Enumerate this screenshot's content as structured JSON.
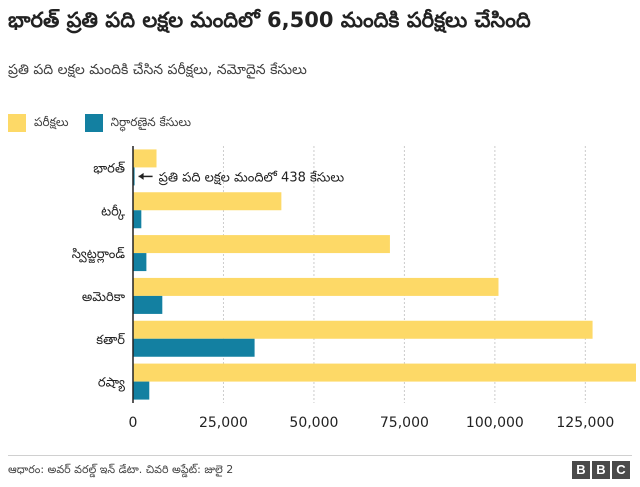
{
  "title": "భారత్ ప్రతి పది లక్షల మందిలో 6,500 మందికి పరీక్షలు చేసింది",
  "subtitle": "ప్రతి పది లక్షల మందికి చేసిన పరీక్షలు, నమోదైన కేసులు",
  "source": "ఆధారం: అవర్ వరల్డ్ ఇన్ డేటా. చివరి అప్డేట్: జులై 2",
  "logo": [
    "B",
    "B",
    "C"
  ],
  "colors": {
    "tests": "#fdd967",
    "cases": "#1380a1",
    "grid": "#cccccc",
    "axis": "#222222",
    "text": "#222222"
  },
  "chart_data": {
    "type": "bar",
    "orientation": "horizontal",
    "categories": [
      "భారత్",
      "టర్కీ",
      "స్విట్జర్లాండ్",
      "అమెరికా",
      "కతార్",
      "రష్యా"
    ],
    "series": [
      {
        "name": "పరీక్షలు",
        "color": "#fdd967",
        "values": [
          6500,
          41000,
          71000,
          101000,
          127000,
          139000
        ]
      },
      {
        "name": "నిర్ధారణైన కేసులు",
        "color": "#1380a1",
        "values": [
          438,
          2300,
          3700,
          8100,
          33600,
          4500
        ]
      }
    ],
    "xlim": [
      0,
      139000
    ],
    "xticks": [
      0,
      25000,
      50000,
      75000,
      100000,
      125000
    ],
    "xtick_labels": [
      "0",
      "25,000",
      "50,000",
      "75,000",
      "100,000",
      "125,000"
    ],
    "annotation": {
      "category": "భారత్",
      "text": "ప్రతి పది లక్షల మందిలో 438 కేసులు"
    },
    "legend": "top-left",
    "grid": true
  }
}
